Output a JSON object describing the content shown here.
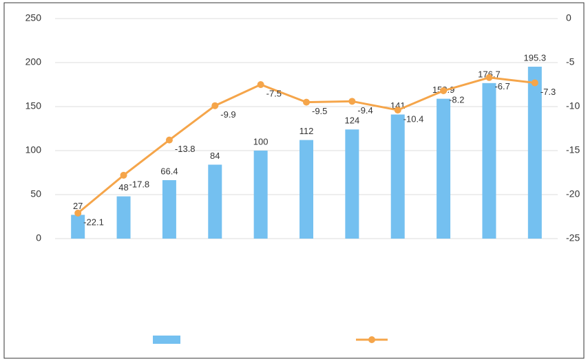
{
  "chart_data": {
    "type": "bar_line",
    "categories": [
      null,
      null,
      null,
      null,
      null,
      null,
      null,
      null,
      null,
      null,
      null
    ],
    "series": [
      {
        "type": "bar",
        "color": "#74c0f0",
        "values": [
          27.0,
          48.0,
          66.4,
          84.0,
          100.0,
          112.0,
          124.0,
          141.0,
          158.9,
          176.7,
          195.3
        ]
      },
      {
        "type": "line",
        "axis": "y2",
        "color": "#f5a54a",
        "values": [
          -22.1,
          -17.8,
          -13.8,
          -9.9,
          -7.5,
          -9.5,
          -9.4,
          -10.4,
          -8.2,
          -6.7,
          -7.3
        ]
      }
    ],
    "ylim": [
      0,
      250
    ],
    "yticks": [
      0,
      50,
      100,
      150,
      200,
      250
    ],
    "y2lim": [
      -25,
      0
    ],
    "y2ticks": [
      -25,
      -20,
      -15,
      -10,
      -5,
      0
    ],
    "grid": true
  }
}
